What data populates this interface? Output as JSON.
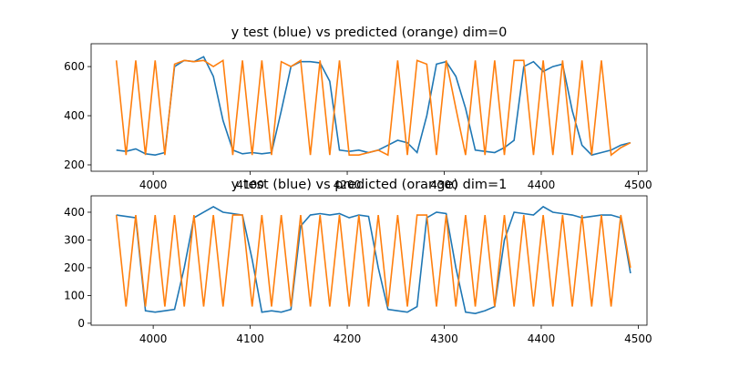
{
  "chart_data": [
    {
      "type": "line",
      "title": "y test (blue) vs predicted (orange) dim=0",
      "x": [
        3962,
        3972,
        3982,
        3992,
        4002,
        4012,
        4022,
        4032,
        4042,
        4052,
        4062,
        4072,
        4082,
        4092,
        4102,
        4112,
        4122,
        4132,
        4142,
        4152,
        4162,
        4172,
        4182,
        4192,
        4202,
        4212,
        4222,
        4232,
        4242,
        4252,
        4262,
        4272,
        4282,
        4292,
        4302,
        4312,
        4322,
        4332,
        4342,
        4352,
        4362,
        4372,
        4382,
        4392,
        4402,
        4412,
        4422,
        4432,
        4442,
        4452,
        4462,
        4472,
        4482,
        4492
      ],
      "series": [
        {
          "color": "#1f77b4",
          "values": [
            260,
            255,
            265,
            245,
            240,
            250,
            600,
            625,
            620,
            640,
            560,
            380,
            260,
            245,
            250,
            245,
            250,
            420,
            600,
            620,
            620,
            615,
            540,
            260,
            255,
            260,
            250,
            260,
            280,
            300,
            290,
            250,
            400,
            610,
            620,
            560,
            430,
            260,
            255,
            250,
            270,
            300,
            600,
            620,
            580,
            600,
            610,
            420,
            280,
            240,
            250,
            260,
            280,
            290
          ]
        },
        {
          "color": "#ff7f0e",
          "values": [
            625,
            240,
            625,
            240,
            625,
            240,
            610,
            625,
            620,
            625,
            600,
            625,
            240,
            625,
            240,
            625,
            240,
            620,
            600,
            625,
            240,
            625,
            240,
            625,
            240,
            240,
            250,
            260,
            240,
            625,
            240,
            625,
            610,
            240,
            625,
            430,
            240,
            625,
            240,
            625,
            240,
            625,
            625,
            240,
            625,
            240,
            625,
            240,
            625,
            240,
            625,
            240,
            270,
            290
          ]
        }
      ],
      "xlim": [
        3936,
        4509
      ],
      "ylim": [
        174,
        693
      ],
      "xticks": [
        4000,
        4100,
        4200,
        4300,
        4400,
        4500
      ],
      "yticks": [
        200,
        400,
        600
      ]
    },
    {
      "type": "line",
      "title": "y test (blue) vs predicted (orange) dim=1",
      "x": [
        3962,
        3972,
        3982,
        3992,
        4002,
        4012,
        4022,
        4032,
        4042,
        4052,
        4062,
        4072,
        4082,
        4092,
        4102,
        4112,
        4122,
        4132,
        4142,
        4152,
        4162,
        4172,
        4182,
        4192,
        4202,
        4212,
        4222,
        4232,
        4242,
        4252,
        4262,
        4272,
        4282,
        4292,
        4302,
        4312,
        4322,
        4332,
        4342,
        4352,
        4362,
        4372,
        4382,
        4392,
        4402,
        4412,
        4422,
        4432,
        4442,
        4452,
        4462,
        4472,
        4482,
        4492
      ],
      "series": [
        {
          "color": "#1f77b4",
          "values": [
            390,
            385,
            380,
            45,
            40,
            45,
            50,
            200,
            380,
            400,
            420,
            400,
            395,
            390,
            230,
            40,
            45,
            40,
            50,
            350,
            390,
            395,
            390,
            395,
            380,
            390,
            385,
            200,
            50,
            45,
            40,
            60,
            380,
            400,
            395,
            200,
            40,
            35,
            45,
            60,
            300,
            400,
            395,
            390,
            420,
            400,
            395,
            390,
            380,
            385,
            390,
            390,
            380,
            180
          ]
        },
        {
          "color": "#ff7f0e",
          "values": [
            390,
            60,
            390,
            60,
            390,
            60,
            390,
            60,
            390,
            60,
            390,
            60,
            390,
            390,
            60,
            390,
            60,
            390,
            60,
            390,
            60,
            390,
            60,
            390,
            60,
            390,
            60,
            390,
            60,
            390,
            60,
            390,
            390,
            60,
            390,
            60,
            390,
            60,
            390,
            60,
            390,
            60,
            390,
            60,
            390,
            60,
            390,
            60,
            390,
            60,
            390,
            60,
            390,
            200
          ]
        }
      ],
      "xlim": [
        3936,
        4509
      ],
      "ylim": [
        -7,
        459
      ],
      "xticks": [
        4000,
        4100,
        4200,
        4300,
        4400,
        4500
      ],
      "yticks": [
        0,
        100,
        200,
        300,
        400
      ]
    }
  ]
}
